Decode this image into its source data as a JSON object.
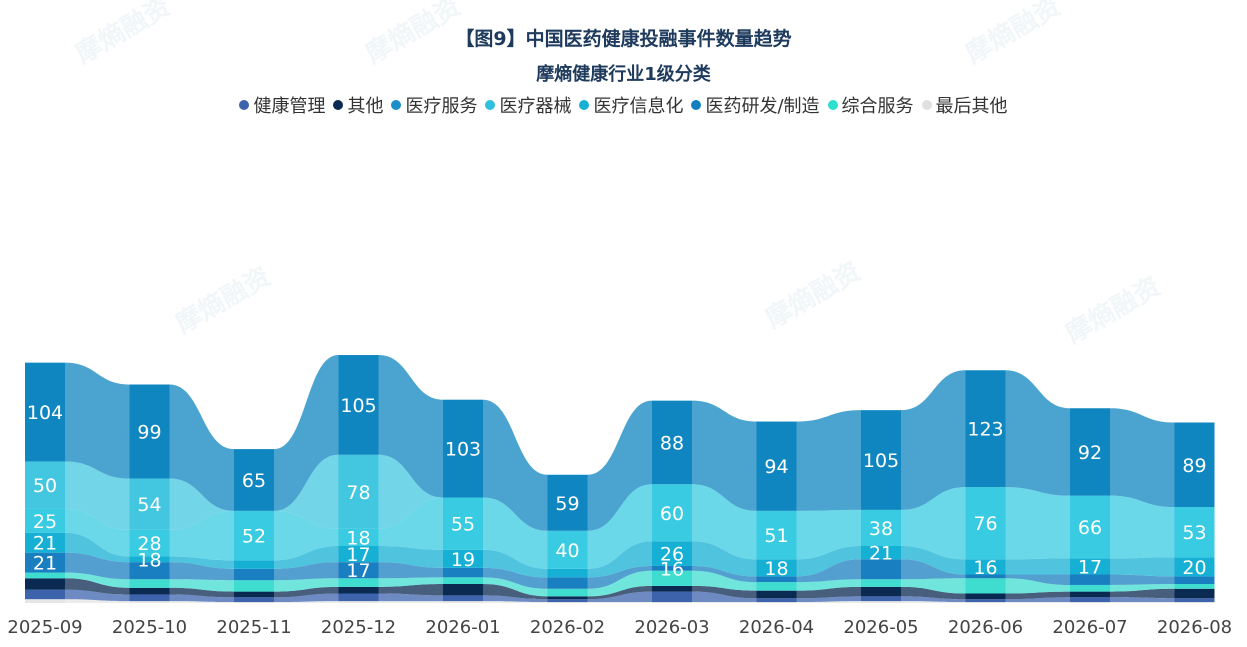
{
  "chart_data": {
    "type": "area",
    "title": "【图9】中国医药健康投融事件数量趋势",
    "subtitle": "摩熵健康行业1级分类",
    "categories": [
      "2025-09",
      "2025-10",
      "2025-11",
      "2025-12",
      "2026-01",
      "2026-02",
      "2026-03",
      "2026-04",
      "2026-05",
      "2026-06",
      "2026-07",
      "2026-08"
    ],
    "series": [
      {
        "name": "最后其他",
        "color": "#e6e6e6",
        "values": [
          4,
          2,
          1,
          2,
          2,
          1,
          1,
          1,
          2,
          1,
          1,
          1
        ],
        "show_labels": false
      },
      {
        "name": "健康管理",
        "color": "#3e63ad",
        "values": [
          10,
          7,
          5,
          8,
          6,
          3,
          11,
          4,
          5,
          3,
          5,
          4
        ],
        "show_labels": false
      },
      {
        "name": "其他",
        "color": "#0a2a52",
        "values": [
          12,
          7,
          6,
          7,
          12,
          3,
          6,
          8,
          10,
          6,
          6,
          10
        ],
        "show_labels": false
      },
      {
        "name": "综合服务",
        "color": "#3fdcd0",
        "values": [
          6,
          9,
          12,
          9,
          7,
          8,
          16,
          9,
          8,
          16,
          7,
          5
        ],
        "show_labels": false,
        "label_min": 15
      },
      {
        "name": "医药研发/制造",
        "color": "#1a7fc0",
        "values": [
          21,
          18,
          12,
          17,
          10,
          12,
          5,
          6,
          21,
          4,
          11,
          8
        ],
        "show_labels": true,
        "label_min": 15
      },
      {
        "name": "医疗信息化",
        "color": "#16b0d4",
        "values": [
          21,
          6,
          9,
          17,
          19,
          9,
          26,
          18,
          14,
          16,
          17,
          20
        ],
        "show_labels": true,
        "label_min": 15
      },
      {
        "name": "医疗器械",
        "color": "#38cbe2",
        "values": [
          25,
          28,
          52,
          18,
          55,
          40,
          60,
          51,
          38,
          76,
          66,
          53
        ],
        "show_labels": true,
        "label_min": 15
      },
      {
        "name": "医疗服务",
        "color": "#43c7e0",
        "values": [
          50,
          54,
          0,
          78,
          0,
          0,
          0,
          0,
          0,
          0,
          0,
          0
        ],
        "show_labels": true,
        "label_min": 15
      },
      {
        "name": "医药研发/制造 ",
        "color": "#0f86bf",
        "values": [
          104,
          99,
          65,
          105,
          103,
          59,
          88,
          94,
          105,
          123,
          92,
          89
        ],
        "show_labels": true,
        "label_min": 15
      }
    ],
    "cell_labels": [
      [
        "104",
        "50",
        "25",
        "21",
        "21"
      ],
      [
        "99",
        "54",
        "28",
        "18"
      ],
      [
        "65",
        "52"
      ],
      [
        "105",
        "78",
        "18",
        "17",
        "17"
      ],
      [
        "103",
        "55",
        "19"
      ],
      [
        "59",
        "40"
      ],
      [
        "88",
        "60",
        "26",
        "16"
      ],
      [
        "94",
        "51",
        "18"
      ],
      [
        "105",
        "38",
        "21"
      ],
      [
        "123",
        "76",
        "16"
      ],
      [
        "92",
        "66",
        "17"
      ],
      [
        "89",
        "53",
        "20"
      ]
    ],
    "legend": [
      {
        "name": "健康管理",
        "color": "#3e63ad"
      },
      {
        "name": "其他",
        "color": "#0a2a52"
      },
      {
        "name": "医疗服务",
        "color": "#1a8fc9"
      },
      {
        "name": "医疗器械",
        "color": "#2ec0dd"
      },
      {
        "name": "医疗信息化",
        "color": "#16b0d4"
      },
      {
        "name": "医药研发/制造",
        "color": "#0f7fbf"
      },
      {
        "name": "综合服务",
        "color": "#2ee0d0"
      },
      {
        "name": "最后其他",
        "color": "#e0e0e0"
      }
    ],
    "legend_position": "top-center",
    "grid": false
  },
  "watermark": "摩熵融资"
}
